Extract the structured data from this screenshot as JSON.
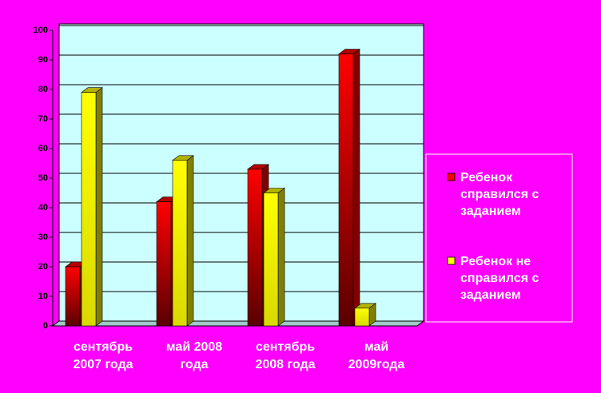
{
  "chart_data": {
    "type": "bar3d",
    "categories": [
      "сентябрь\n2007 года",
      "май 2008\nгода",
      "сентябрь\n2008 года",
      "май\n2009года"
    ],
    "series": [
      {
        "name": "Ребенок\nсправился с\nзаданием",
        "color": "#ff0000",
        "values": [
          20,
          42,
          53,
          92
        ]
      },
      {
        "name": "Ребенок не\nсправился с\nзаданием",
        "color": "#ffff00",
        "values": [
          79,
          56,
          45,
          6
        ]
      }
    ],
    "ylim": [
      0,
      100
    ],
    "yticks": [
      0,
      10,
      20,
      30,
      40,
      50,
      60,
      70,
      80,
      90,
      100
    ],
    "grid": true,
    "legend": "right"
  }
}
